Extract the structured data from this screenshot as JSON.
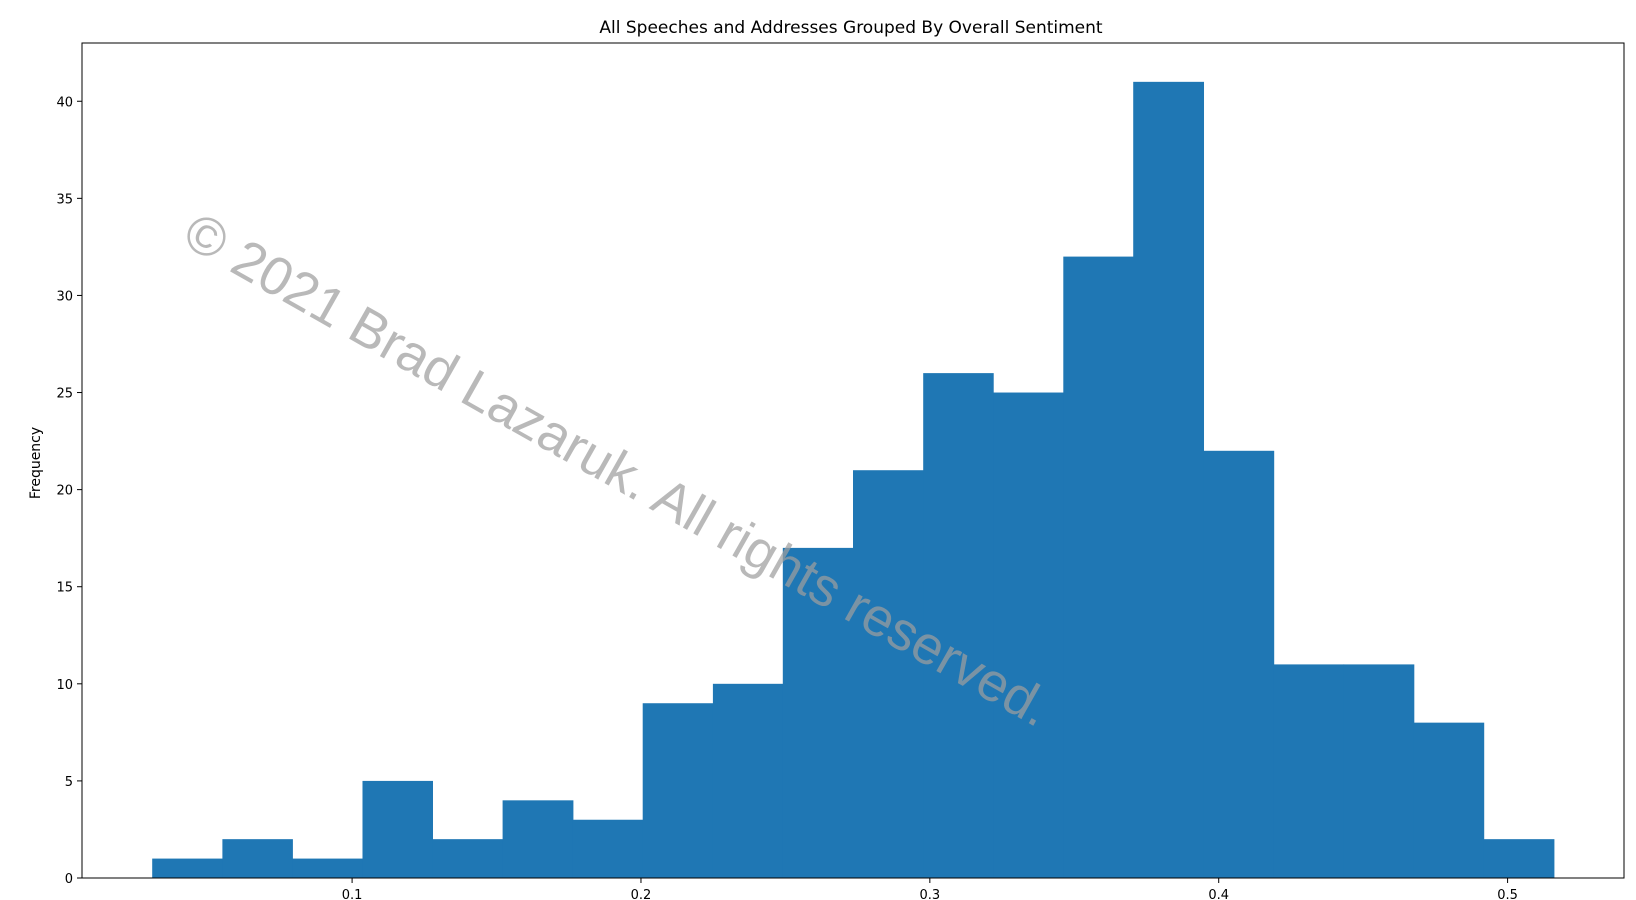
{
  "chart_data": {
    "type": "bar",
    "title": "All Speeches and Addresses Grouped By Overall Sentiment",
    "xlabel": "",
    "ylabel": "Frequency",
    "bin_edges": [
      0.0308,
      0.0551,
      0.0793,
      0.1036,
      0.1278,
      0.1521,
      0.1764,
      0.2006,
      0.2249,
      0.2491,
      0.2734,
      0.2977,
      0.3219,
      0.3462,
      0.3704,
      0.3947,
      0.419,
      0.4432,
      0.4675,
      0.4917,
      0.516
    ],
    "values": [
      1,
      2,
      1,
      5,
      2,
      4,
      3,
      9,
      10,
      17,
      21,
      26,
      25,
      32,
      41,
      22,
      11,
      11,
      8,
      2
    ],
    "xlim": [
      0.0065,
      0.5403
    ],
    "ylim": [
      0,
      43
    ],
    "xticks": [
      0.1,
      0.2,
      0.3,
      0.4,
      0.5
    ],
    "xtick_labels": [
      "0.1",
      "0.2",
      "0.3",
      "0.4",
      "0.5"
    ],
    "yticks": [
      0,
      5,
      10,
      15,
      20,
      25,
      30,
      35,
      40
    ],
    "ytick_labels": [
      "0",
      "5",
      "10",
      "15",
      "20",
      "25",
      "30",
      "35",
      "40"
    ],
    "bar_color": "#1f77b4",
    "grid": false,
    "legend": "none",
    "watermark": "© 2021 Brad Lazaruk. All rights reserved."
  }
}
